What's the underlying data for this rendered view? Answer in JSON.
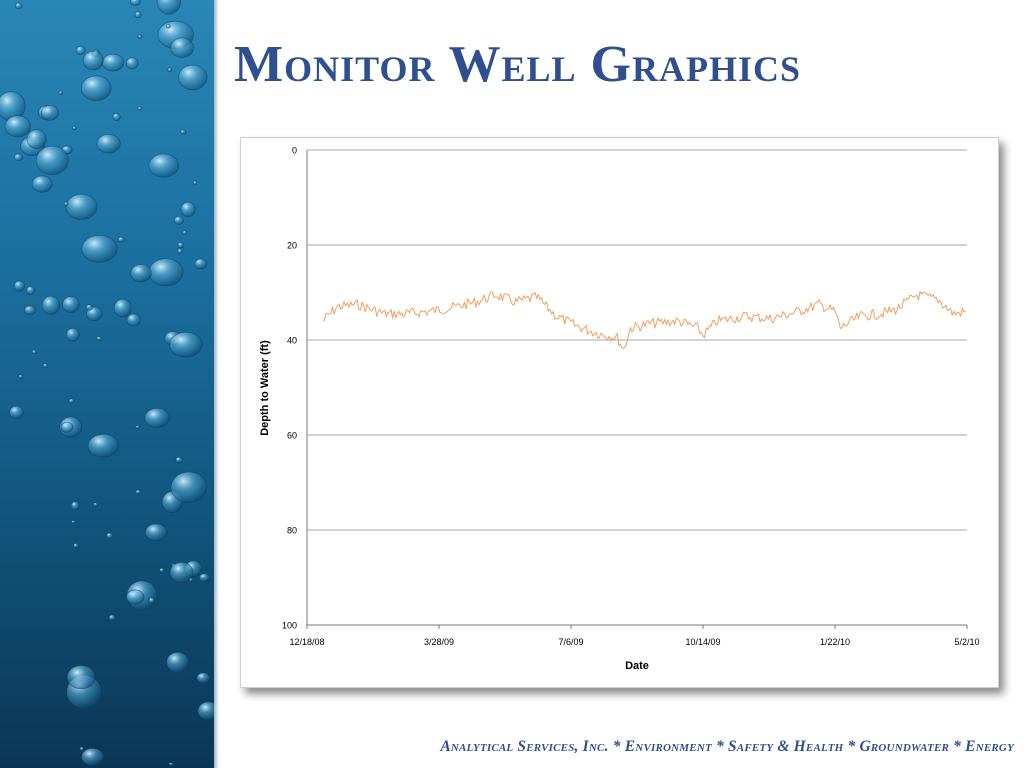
{
  "slide": {
    "title": "Monitor Well Graphics",
    "footer": "Analytical Services, Inc. * Environment * Safety & Health * Groundwater * Energy"
  },
  "colors": {
    "title": "#2f4f8f",
    "series": "#f0a060",
    "gridline": "#8c8c8c",
    "water_dark": "#0a3656",
    "water_light": "#2a86b6"
  },
  "chart_data": {
    "type": "line",
    "title": "",
    "xlabel": "Date",
    "ylabel": "Depth to Water (ft)",
    "y_inverted": true,
    "ylim": [
      0,
      100
    ],
    "yticks": [
      0,
      20,
      40,
      60,
      80,
      100
    ],
    "xlim": [
      "12/18/08",
      "5/2/10"
    ],
    "xticks": [
      "12/18/08",
      "3/28/09",
      "7/6/09",
      "10/14/09",
      "1/22/10",
      "5/2/10"
    ],
    "grid": "horizontal",
    "legend": "none",
    "series": [
      {
        "name": "",
        "color": "#f0a060",
        "x": [
          "12/30/08",
          "1/10/09",
          "1/25/09",
          "2/15/09",
          "3/1/09",
          "3/20/09",
          "4/10/09",
          "4/25/09",
          "5/10/09",
          "5/25/09",
          "6/10/09",
          "6/25/09",
          "7/10/09",
          "7/25/09",
          "8/10/09",
          "8/15/09",
          "8/20/09",
          "9/5/09",
          "9/25/09",
          "10/10/09",
          "10/14/09",
          "10/25/09",
          "11/15/09",
          "12/5/09",
          "12/25/09",
          "1/10/10",
          "1/22/10",
          "1/26/10",
          "2/10/10",
          "2/25/10",
          "3/10/10",
          "3/25/10",
          "4/10/10",
          "4/22/10",
          "5/1/10"
        ],
        "y": [
          36,
          33,
          32.5,
          34.5,
          34.5,
          34,
          33,
          32,
          30.5,
          32,
          31,
          35,
          37,
          38.5,
          39.5,
          42,
          37.5,
          36.5,
          36,
          37.5,
          39,
          36,
          35,
          35.5,
          34,
          32.5,
          34,
          37.5,
          35,
          34.5,
          33.5,
          30.5,
          31.5,
          34.5,
          34
        ]
      }
    ]
  }
}
